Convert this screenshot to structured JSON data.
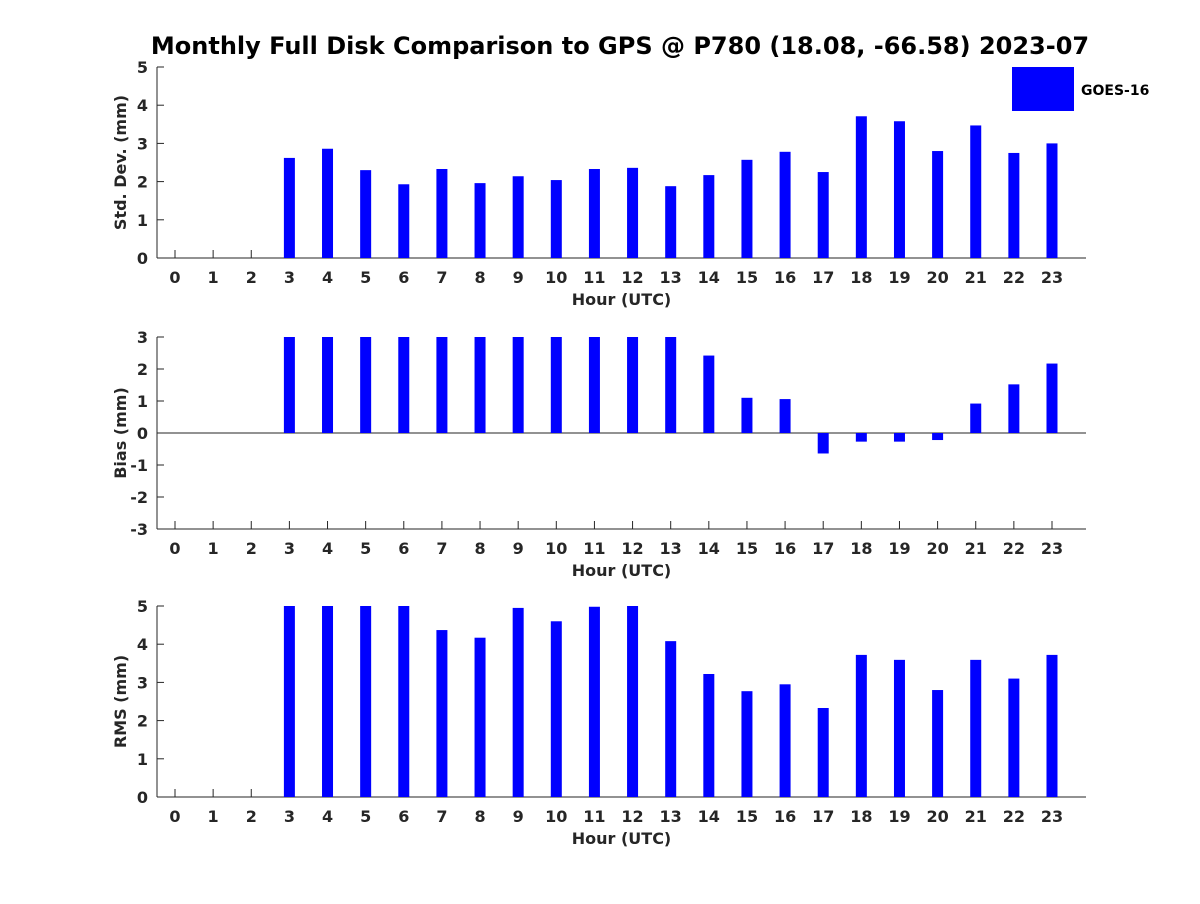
{
  "chart_data": [
    {
      "type": "bar",
      "title": "Monthly Full Disk Comparison to GPS @ P780 (18.08, -66.58) 2023-07",
      "xlabel": "Hour (UTC)",
      "ylabel": "Std. Dev. (mm)",
      "ylim": [
        0,
        5
      ],
      "yticks": [
        0,
        1,
        2,
        3,
        4,
        5
      ],
      "categories": [
        "0",
        "1",
        "2",
        "3",
        "4",
        "5",
        "6",
        "7",
        "8",
        "9",
        "10",
        "11",
        "12",
        "13",
        "14",
        "15",
        "16",
        "17",
        "18",
        "19",
        "20",
        "21",
        "22",
        "23"
      ],
      "legend": {
        "position": "top-right",
        "entries": [
          "GOES-16"
        ]
      },
      "series": [
        {
          "name": "GOES-16",
          "color": "#0000ff",
          "values": [
            null,
            null,
            null,
            2.62,
            2.86,
            2.3,
            1.93,
            2.33,
            1.96,
            2.14,
            2.04,
            2.33,
            2.36,
            1.88,
            2.17,
            2.57,
            2.78,
            2.25,
            3.71,
            3.58,
            2.8,
            3.47,
            2.75,
            3.0
          ]
        }
      ]
    },
    {
      "type": "bar",
      "title": "",
      "xlabel": "Hour (UTC)",
      "ylabel": "Bias (mm)",
      "ylim": [
        -3,
        3
      ],
      "yticks": [
        -3,
        -2,
        -1,
        0,
        1,
        2,
        3
      ],
      "categories": [
        "0",
        "1",
        "2",
        "3",
        "4",
        "5",
        "6",
        "7",
        "8",
        "9",
        "10",
        "11",
        "12",
        "13",
        "14",
        "15",
        "16",
        "17",
        "18",
        "19",
        "20",
        "21",
        "22",
        "23"
      ],
      "series": [
        {
          "name": "GOES-16",
          "color": "#0000ff",
          "values": [
            null,
            null,
            null,
            3,
            3,
            3,
            3,
            3,
            3,
            3,
            3,
            3,
            3,
            3,
            2.42,
            1.1,
            1.06,
            -0.64,
            -0.27,
            -0.27,
            -0.22,
            0.92,
            1.52,
            2.17
          ]
        }
      ]
    },
    {
      "type": "bar",
      "title": "",
      "xlabel": "Hour (UTC)",
      "ylabel": "RMS (mm)",
      "ylim": [
        0,
        5
      ],
      "yticks": [
        0,
        1,
        2,
        3,
        4,
        5
      ],
      "categories": [
        "0",
        "1",
        "2",
        "3",
        "4",
        "5",
        "6",
        "7",
        "8",
        "9",
        "10",
        "11",
        "12",
        "13",
        "14",
        "15",
        "16",
        "17",
        "18",
        "19",
        "20",
        "21",
        "22",
        "23"
      ],
      "series": [
        {
          "name": "GOES-16",
          "color": "#0000ff",
          "values": [
            null,
            null,
            null,
            5,
            5,
            5,
            5,
            4.37,
            4.17,
            4.95,
            4.6,
            4.98,
            5,
            4.08,
            3.22,
            2.77,
            2.95,
            2.33,
            3.72,
            3.59,
            2.8,
            3.59,
            3.1,
            3.72
          ]
        }
      ]
    }
  ]
}
